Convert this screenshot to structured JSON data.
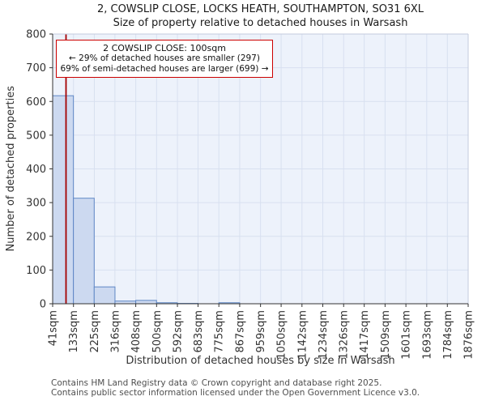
{
  "chart_data": {
    "type": "bar",
    "title": "2, COWSLIP CLOSE, LOCKS HEATH, SOUTHAMPTON, SO31 6XL",
    "subtitle": "Size of property relative to detached houses in Warsash",
    "xlabel": "Distribution of detached houses by size in Warsash",
    "ylabel": "Number of detached properties",
    "ylim": [
      0,
      800
    ],
    "ytick_step": 100,
    "grid": true,
    "legend": "none",
    "bin_edges_sqm": [
      41,
      133,
      225,
      316,
      408,
      500,
      592,
      683,
      775,
      867,
      959,
      1050,
      1142,
      1234,
      1326,
      1417,
      1509,
      1601,
      1693,
      1784,
      1876
    ],
    "xtick_labels": [
      "41sqm",
      "133sqm",
      "225sqm",
      "316sqm",
      "408sqm",
      "500sqm",
      "592sqm",
      "683sqm",
      "775sqm",
      "867sqm",
      "959sqm",
      "1050sqm",
      "1142sqm",
      "1234sqm",
      "1326sqm",
      "1417sqm",
      "1509sqm",
      "1601sqm",
      "1693sqm",
      "1784sqm",
      "1876sqm"
    ],
    "values": [
      617,
      313,
      50,
      8,
      10,
      3,
      1,
      0,
      3,
      0,
      0,
      0,
      0,
      0,
      0,
      0,
      0,
      0,
      0,
      0
    ],
    "marker": {
      "name": "2 COWSLIP CLOSE",
      "value_sqm": 100,
      "color": "#a40000"
    },
    "annotation": {
      "line1": "2 COWSLIP CLOSE: 100sqm",
      "line2": "← 29% of detached houses are smaller (297)",
      "line3": "69% of semi-detached houses are larger (699) →",
      "border_color": "#cc0000"
    },
    "colors": {
      "bar_fill": "#ccd9f0",
      "bar_edge": "#5f87c5",
      "plot_bg": "#edf2fb",
      "grid": "#d8e0f0",
      "axis": "#333333",
      "background": "#ffffff"
    }
  },
  "footer": {
    "line1": "Contains HM Land Registry data © Crown copyright and database right 2025.",
    "line2": "Contains public sector information licensed under the Open Government Licence v3.0."
  }
}
